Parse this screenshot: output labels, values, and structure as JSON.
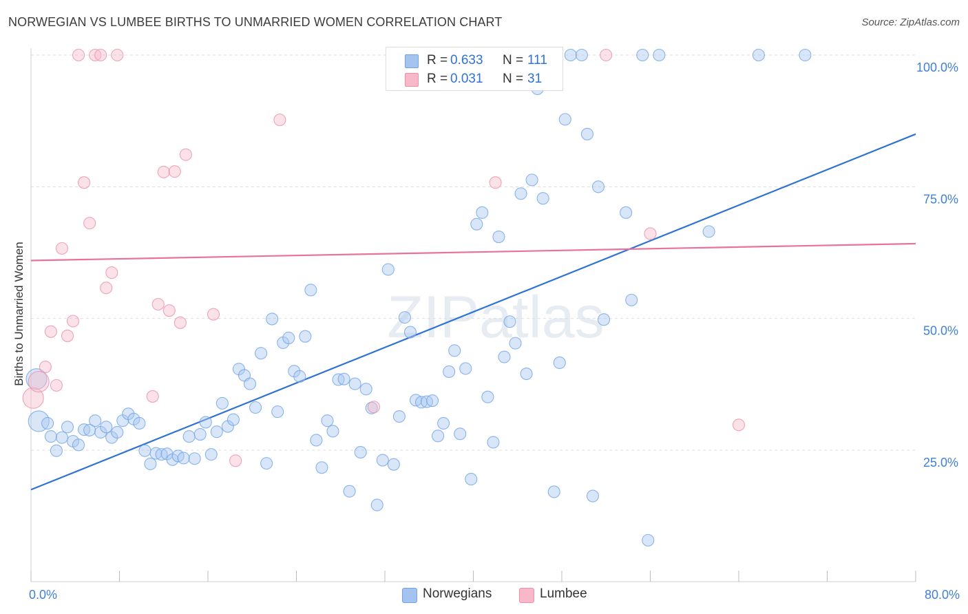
{
  "title": "NORWEGIAN VS LUMBEE BIRTHS TO UNMARRIED WOMEN CORRELATION CHART",
  "source": "Source: ZipAtlas.com",
  "watermark": "ZIPatlas",
  "legend": {
    "rows": [
      {
        "r_label": "R =",
        "r_value": "0.633",
        "n_label": "N =",
        "n_value": "111",
        "color": "#a4c4ef"
      },
      {
        "r_label": "R =",
        "r_value": "0.031",
        "n_label": "N =",
        "n_value": "31",
        "color": "#f7b8ca"
      }
    ]
  },
  "bottom_legend": [
    {
      "label": "Norwegians",
      "color": "#a4c4ef"
    },
    {
      "label": "Lumbee",
      "color": "#f7b8ca"
    }
  ],
  "chart_data": {
    "type": "scatter",
    "title": "NORWEGIAN VS LUMBEE BIRTHS TO UNMARRIED WOMEN CORRELATION CHART",
    "xlabel": "",
    "ylabel": "Births to Unmarried Women",
    "xlim": [
      0,
      80
    ],
    "ylim": [
      0,
      104
    ],
    "x_tick_labels": [
      "0.0%",
      "80.0%"
    ],
    "y_tick_labels": [
      "25.0%",
      "50.0%",
      "75.0%",
      "100.0%"
    ],
    "y_ticks": [
      25,
      50,
      75,
      100
    ],
    "grid": true,
    "legend_position": "top-center",
    "series": [
      {
        "name": "Norwegians",
        "color": "#6fa2e8",
        "fill": "#a9c8f0",
        "trend": {
          "x": [
            0,
            80
          ],
          "y": [
            17.5,
            85.0
          ],
          "color": "#2f72d6"
        },
        "points": [
          [
            0.5,
            38.5
          ],
          [
            0.7,
            30.5
          ],
          [
            1.5,
            30.1
          ],
          [
            1.8,
            27.6
          ],
          [
            2.3,
            24.9
          ],
          [
            2.8,
            27.4
          ],
          [
            3.3,
            29.4
          ],
          [
            3.8,
            26.7
          ],
          [
            4.3,
            26.0
          ],
          [
            4.8,
            28.9
          ],
          [
            5.3,
            28.8
          ],
          [
            5.8,
            30.6
          ],
          [
            6.3,
            28.4
          ],
          [
            6.8,
            29.4
          ],
          [
            7.3,
            27.4
          ],
          [
            7.8,
            28.4
          ],
          [
            8.3,
            30.6
          ],
          [
            8.8,
            31.9
          ],
          [
            9.3,
            30.9
          ],
          [
            9.8,
            30.1
          ],
          [
            10.3,
            24.9
          ],
          [
            10.8,
            22.4
          ],
          [
            11.3,
            24.4
          ],
          [
            11.8,
            24.2
          ],
          [
            12.3,
            24.3
          ],
          [
            12.8,
            23.2
          ],
          [
            13.3,
            23.9
          ],
          [
            13.8,
            23.5
          ],
          [
            14.3,
            27.6
          ],
          [
            14.8,
            23.4
          ],
          [
            15.3,
            28.0
          ],
          [
            15.8,
            30.3
          ],
          [
            16.3,
            24.2
          ],
          [
            16.8,
            28.5
          ],
          [
            17.3,
            33.9
          ],
          [
            17.8,
            29.5
          ],
          [
            18.3,
            30.8
          ],
          [
            18.8,
            40.4
          ],
          [
            19.3,
            39.2
          ],
          [
            19.8,
            37.6
          ],
          [
            20.3,
            33.1
          ],
          [
            20.8,
            43.4
          ],
          [
            21.3,
            22.5
          ],
          [
            21.8,
            49.9
          ],
          [
            22.3,
            32.3
          ],
          [
            22.8,
            45.4
          ],
          [
            23.3,
            46.3
          ],
          [
            23.8,
            40.0
          ],
          [
            24.3,
            39.0
          ],
          [
            24.8,
            46.6
          ],
          [
            25.3,
            55.4
          ],
          [
            25.8,
            26.9
          ],
          [
            26.3,
            21.7
          ],
          [
            26.8,
            30.6
          ],
          [
            27.3,
            28.6
          ],
          [
            27.8,
            38.4
          ],
          [
            28.3,
            38.5
          ],
          [
            28.8,
            17.2
          ],
          [
            29.3,
            37.6
          ],
          [
            29.8,
            24.6
          ],
          [
            30.3,
            36.6
          ],
          [
            30.8,
            33.0
          ],
          [
            31.3,
            14.6
          ],
          [
            31.8,
            23.1
          ],
          [
            32.3,
            59.3
          ],
          [
            32.8,
            22.3
          ],
          [
            33.3,
            31.4
          ],
          [
            33.8,
            50.2
          ],
          [
            34.3,
            47.4
          ],
          [
            34.8,
            34.5
          ],
          [
            35.3,
            34.1
          ],
          [
            35.8,
            34.2
          ],
          [
            36.3,
            34.4
          ],
          [
            36.8,
            27.7
          ],
          [
            37.3,
            30.1
          ],
          [
            37.8,
            39.9
          ],
          [
            38.3,
            43.9
          ],
          [
            38.8,
            28.1
          ],
          [
            39.3,
            40.5
          ],
          [
            39.8,
            19.5
          ],
          [
            40.3,
            67.9
          ],
          [
            40.8,
            70.1
          ],
          [
            41.3,
            35.1
          ],
          [
            41.8,
            26.5
          ],
          [
            42.3,
            65.5
          ],
          [
            42.8,
            42.7
          ],
          [
            43.3,
            49.4
          ],
          [
            43.8,
            45.3
          ],
          [
            44.3,
            73.7
          ],
          [
            44.8,
            39.5
          ],
          [
            45.3,
            76.3
          ],
          [
            45.8,
            93.6
          ],
          [
            46.3,
            72.8
          ],
          [
            46.8,
            100.0
          ],
          [
            47.3,
            17.1
          ],
          [
            47.8,
            41.6
          ],
          [
            48.3,
            87.8
          ],
          [
            48.8,
            100.0
          ],
          [
            49.8,
            100.0
          ],
          [
            50.3,
            85.0
          ],
          [
            50.8,
            16.3
          ],
          [
            51.3,
            75.0
          ],
          [
            51.8,
            49.8
          ],
          [
            53.8,
            70.1
          ],
          [
            54.3,
            53.5
          ],
          [
            55.3,
            100.0
          ],
          [
            55.8,
            7.9
          ],
          [
            56.8,
            100.0
          ],
          [
            61.3,
            66.5
          ],
          [
            65.8,
            100.0
          ],
          [
            70.0,
            100.0
          ]
        ]
      },
      {
        "name": "Lumbee",
        "color": "#eb8ea9",
        "fill": "#f7bccd",
        "trend": {
          "x": [
            0,
            80
          ],
          "y": [
            61.0,
            64.2
          ],
          "color": "#e8729a"
        },
        "points": [
          [
            0.2,
            34.9
          ],
          [
            0.7,
            38.0
          ],
          [
            1.3,
            40.8
          ],
          [
            1.8,
            47.5
          ],
          [
            2.3,
            37.3
          ],
          [
            2.8,
            63.3
          ],
          [
            3.3,
            46.7
          ],
          [
            3.8,
            49.5
          ],
          [
            4.3,
            100.0
          ],
          [
            4.8,
            75.8
          ],
          [
            5.3,
            68.1
          ],
          [
            5.8,
            100.0
          ],
          [
            6.3,
            100.0
          ],
          [
            6.8,
            55.8
          ],
          [
            7.3,
            58.7
          ],
          [
            7.8,
            100.0
          ],
          [
            11.0,
            35.2
          ],
          [
            11.5,
            52.7
          ],
          [
            12.0,
            77.8
          ],
          [
            12.5,
            51.5
          ],
          [
            13.0,
            77.9
          ],
          [
            13.5,
            49.2
          ],
          [
            14.0,
            81.1
          ],
          [
            16.5,
            50.8
          ],
          [
            18.5,
            23.0
          ],
          [
            22.5,
            87.7
          ],
          [
            31.0,
            33.2
          ],
          [
            42.0,
            75.8
          ],
          [
            52.0,
            100.0
          ],
          [
            56.0,
            66.1
          ],
          [
            64.0,
            29.8
          ]
        ]
      }
    ]
  }
}
